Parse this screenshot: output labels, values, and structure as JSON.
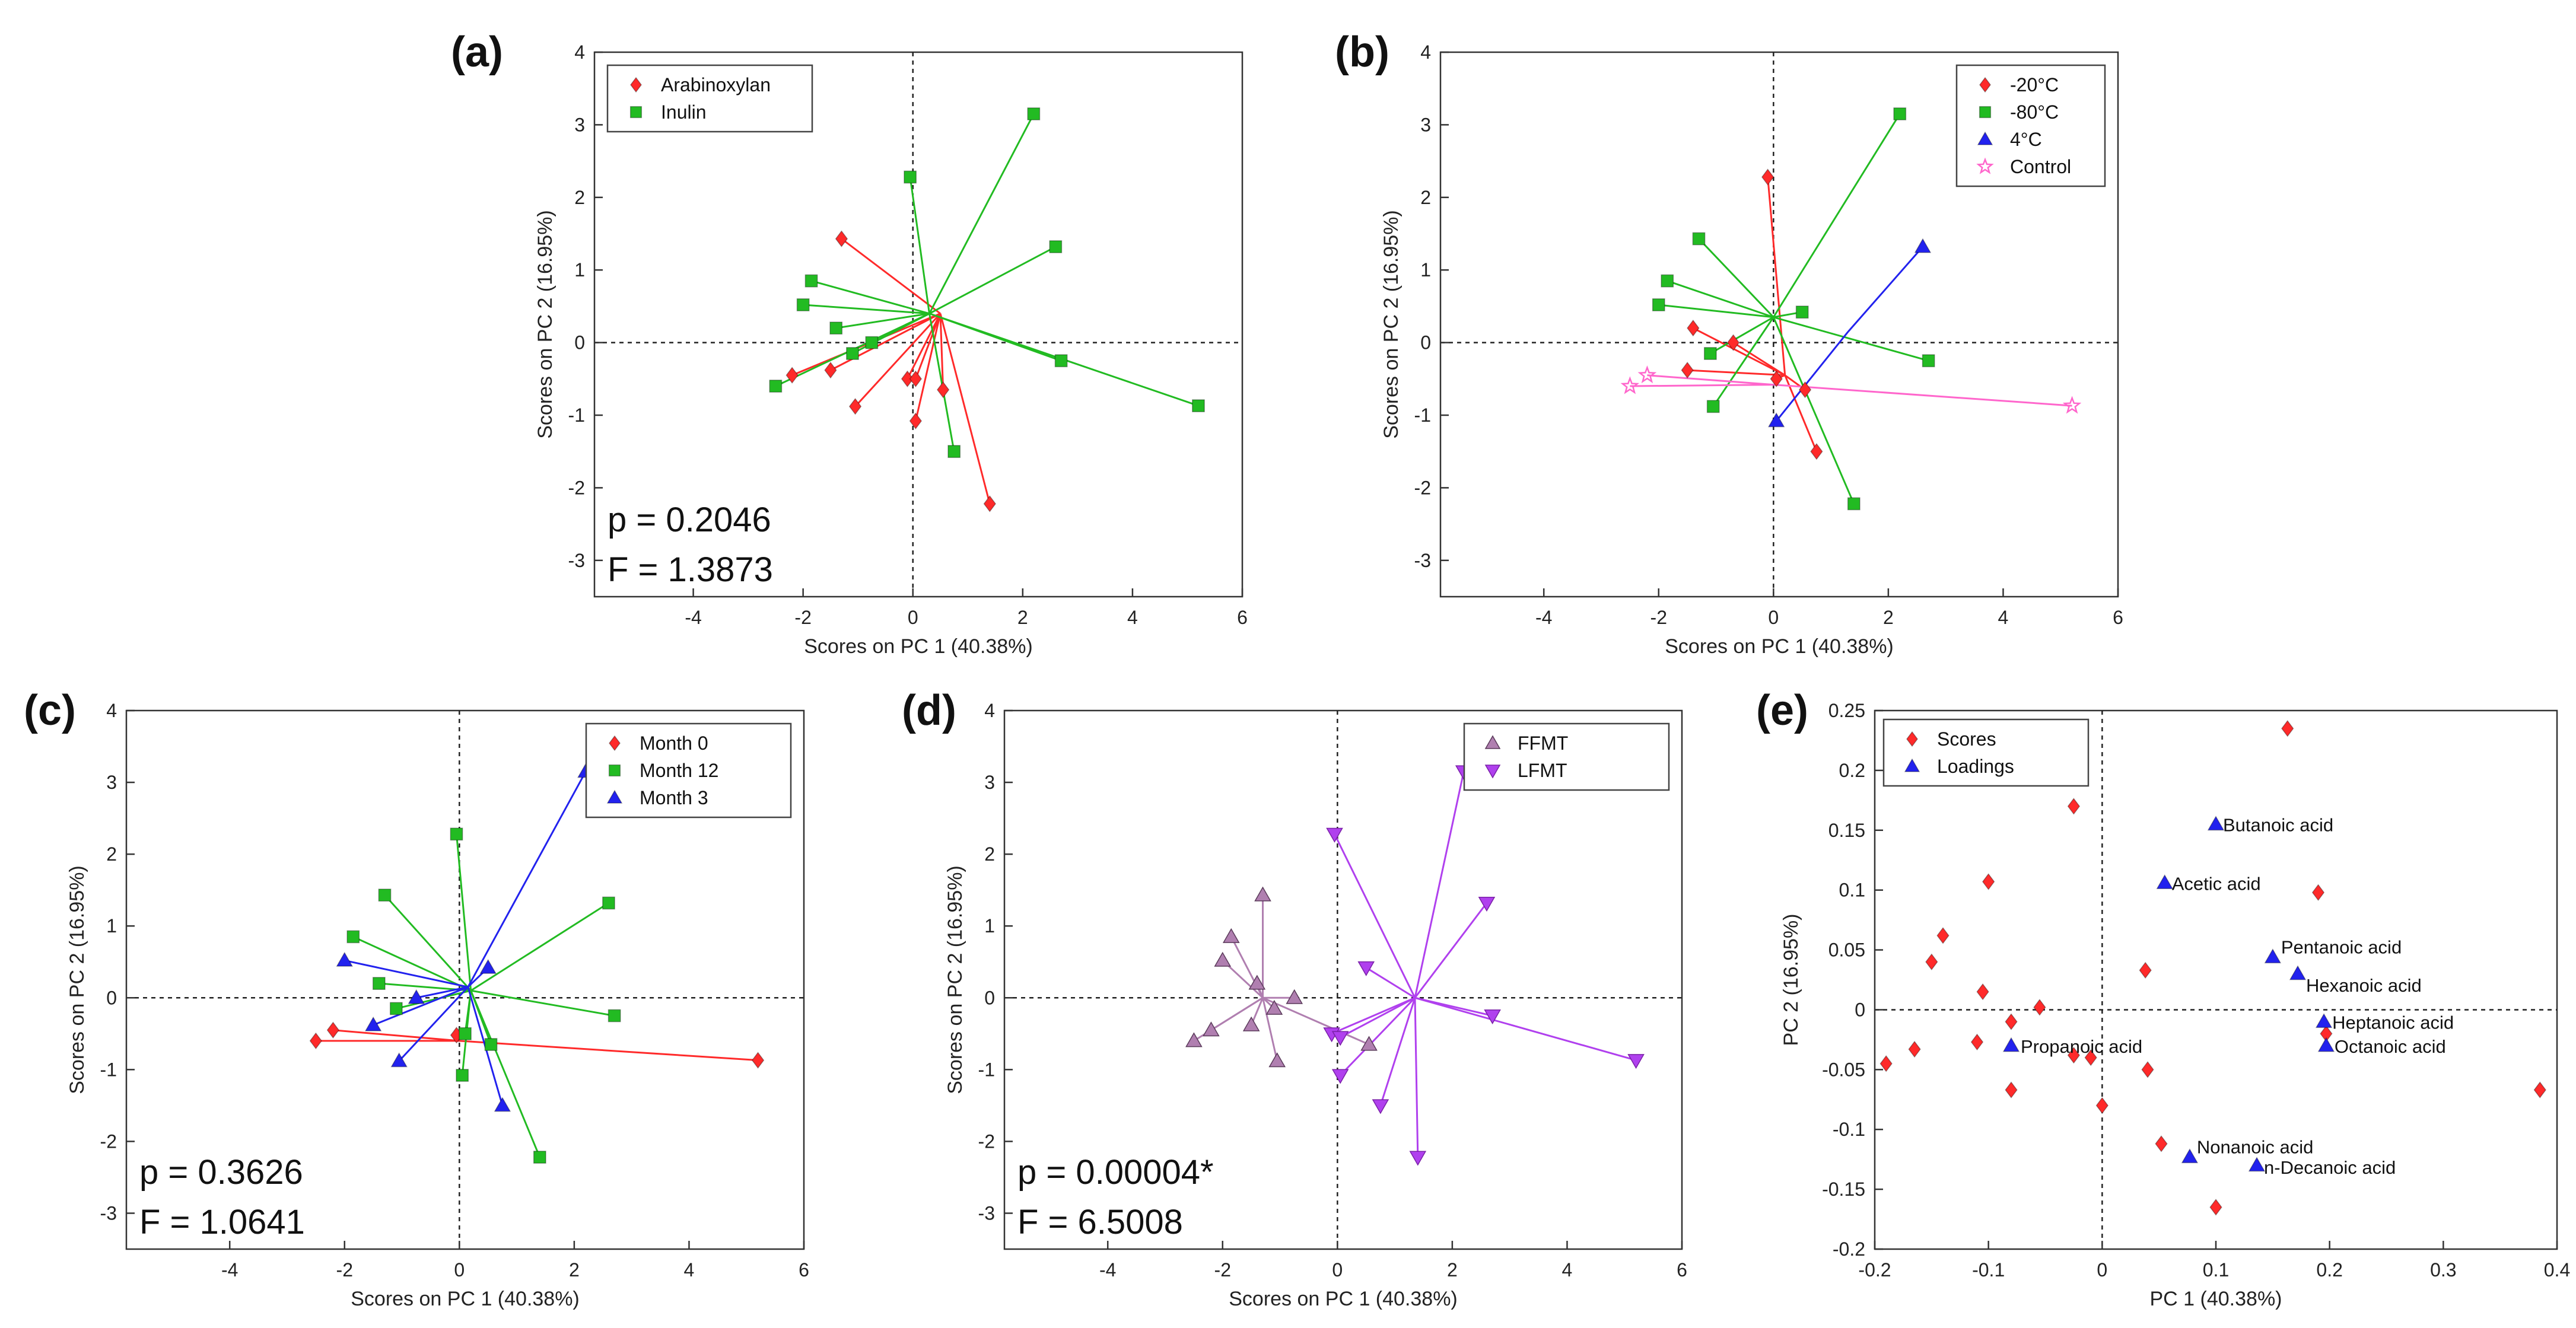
{
  "chart_data": [
    {
      "panel": "(a)",
      "type": "scatter",
      "xlabel": "Scores on PC 1 (40.38%)",
      "ylabel": "Scores on PC 2 (16.95%)",
      "xlim": [
        -5.8,
        6
      ],
      "ylim": [
        -3.5,
        4
      ],
      "xticks": [
        -4,
        -2,
        0,
        2,
        4,
        6
      ],
      "yticks": [
        -3,
        -2,
        -1,
        0,
        1,
        2,
        3,
        4
      ],
      "stats": [
        "p = 0.2046",
        "F = 1.3873"
      ],
      "legend_position": "top-left",
      "series": [
        {
          "name": "Arabinoxylan",
          "marker": "diamond",
          "color": "#ff2a2a",
          "centroid": [
            0.5,
            0.4
          ],
          "points": [
            [
              -1.3,
              1.43
            ],
            [
              -2.2,
              -0.45
            ],
            [
              -1.5,
              -0.38
            ],
            [
              -1.05,
              -0.88
            ],
            [
              -0.1,
              -0.5
            ],
            [
              0.05,
              -0.5
            ],
            [
              0.05,
              -1.08
            ],
            [
              0.55,
              -0.65
            ],
            [
              1.4,
              -2.22
            ]
          ]
        },
        {
          "name": "Inulin",
          "marker": "square",
          "color": "#22bb22",
          "centroid": [
            0.3,
            0.4
          ],
          "points": [
            [
              2.2,
              3.15
            ],
            [
              -0.05,
              2.28
            ],
            [
              2.6,
              1.32
            ],
            [
              -1.85,
              0.85
            ],
            [
              -2.0,
              0.52
            ],
            [
              -1.4,
              0.2
            ],
            [
              -1.1,
              -0.15
            ],
            [
              -0.75,
              0.0
            ],
            [
              -2.5,
              -0.6
            ],
            [
              0.75,
              -1.5
            ],
            [
              2.7,
              -0.25
            ],
            [
              5.2,
              -0.87
            ]
          ]
        }
      ]
    },
    {
      "panel": "(b)",
      "type": "scatter",
      "xlabel": "Scores on PC 1 (40.38%)",
      "ylabel": "Scores on PC 2 (16.95%)",
      "xlim": [
        -5.8,
        6
      ],
      "ylim": [
        -3.5,
        4
      ],
      "xticks": [
        -4,
        -2,
        0,
        2,
        4,
        6
      ],
      "yticks": [
        -3,
        -2,
        -1,
        0,
        1,
        2,
        3,
        4
      ],
      "legend_position": "top-right",
      "series": [
        {
          "name": "-20°C",
          "marker": "diamond",
          "color": "#ff2a2a",
          "centroid": [
            0.2,
            -0.45
          ],
          "points": [
            [
              -0.1,
              2.28
            ],
            [
              -1.4,
              0.2
            ],
            [
              -0.7,
              0.0
            ],
            [
              -1.5,
              -0.38
            ],
            [
              0.05,
              -0.5
            ],
            [
              0.55,
              -0.65
            ],
            [
              0.75,
              -1.5
            ]
          ]
        },
        {
          "name": "-80°C",
          "marker": "square",
          "color": "#22bb22",
          "centroid": [
            0.0,
            0.35
          ],
          "points": [
            [
              2.2,
              3.15
            ],
            [
              -1.3,
              1.43
            ],
            [
              -1.85,
              0.85
            ],
            [
              -2.0,
              0.52
            ],
            [
              -1.1,
              -0.15
            ],
            [
              0.5,
              0.42
            ],
            [
              -1.05,
              -0.88
            ],
            [
              2.7,
              -0.25
            ],
            [
              1.4,
              -2.22
            ]
          ]
        },
        {
          "name": "4°C",
          "marker": "triangle-up",
          "color": "#2222ee",
          "centroid": [
            1.3,
            0.15
          ],
          "points": [
            [
              2.6,
              1.32
            ],
            [
              0.05,
              -1.08
            ]
          ]
        },
        {
          "name": "Control",
          "marker": "star",
          "color": "#ff66cc",
          "centroid": [
            0.0,
            -0.58
          ],
          "points": [
            [
              -2.2,
              -0.45
            ],
            [
              -2.5,
              -0.6
            ],
            [
              5.2,
              -0.87
            ]
          ]
        }
      ]
    },
    {
      "panel": "(c)",
      "type": "scatter",
      "xlabel": "Scores on PC 1 (40.38%)",
      "ylabel": "Scores on PC 2 (16.95%)",
      "xlim": [
        -5.8,
        6
      ],
      "ylim": [
        -3.5,
        4
      ],
      "xticks": [
        -4,
        -2,
        0,
        2,
        4,
        6
      ],
      "yticks": [
        -3,
        -2,
        -1,
        0,
        1,
        2,
        3,
        4
      ],
      "stats": [
        "p = 0.3626",
        "F = 1.0641"
      ],
      "legend_position": "top-right",
      "series": [
        {
          "name": "Month 0",
          "marker": "diamond",
          "color": "#ff2a2a",
          "centroid": [
            0.0,
            -0.6
          ],
          "points": [
            [
              -2.2,
              -0.45
            ],
            [
              -2.5,
              -0.6
            ],
            [
              -0.05,
              -0.52
            ],
            [
              5.2,
              -0.87
            ]
          ]
        },
        {
          "name": "Month 12",
          "marker": "square",
          "color": "#22bb22",
          "centroid": [
            0.2,
            0.1
          ],
          "points": [
            [
              -0.05,
              2.28
            ],
            [
              -1.3,
              1.43
            ],
            [
              -1.85,
              0.85
            ],
            [
              2.6,
              1.32
            ],
            [
              -1.4,
              0.2
            ],
            [
              -1.1,
              -0.15
            ],
            [
              0.1,
              -0.5
            ],
            [
              0.05,
              -1.08
            ],
            [
              0.55,
              -0.65
            ],
            [
              2.7,
              -0.25
            ],
            [
              1.4,
              -2.22
            ]
          ]
        },
        {
          "name": "Month 3",
          "marker": "triangle-up",
          "color": "#2222ee",
          "centroid": [
            0.15,
            0.15
          ],
          "points": [
            [
              2.2,
              3.15
            ],
            [
              -2.0,
              0.52
            ],
            [
              -1.5,
              -0.38
            ],
            [
              -0.75,
              0.0
            ],
            [
              0.5,
              0.42
            ],
            [
              -1.05,
              -0.88
            ],
            [
              0.75,
              -1.5
            ]
          ]
        }
      ]
    },
    {
      "panel": "(d)",
      "type": "scatter",
      "xlabel": "Scores on PC 1 (40.38%)",
      "ylabel": "Scores on PC 2 (16.95%)",
      "xlim": [
        -5.8,
        6
      ],
      "ylim": [
        -3.5,
        4
      ],
      "xticks": [
        -4,
        -2,
        0,
        2,
        4,
        6
      ],
      "yticks": [
        -3,
        -2,
        -1,
        0,
        1,
        2,
        3,
        4
      ],
      "stats": [
        "p = 0.00004*",
        "F = 6.5008"
      ],
      "legend_position": "top-right",
      "series": [
        {
          "name": "FFMT",
          "marker": "triangle-up",
          "color": "#b07fb0",
          "centroid": [
            -1.3,
            0.0
          ],
          "points": [
            [
              -1.3,
              1.43
            ],
            [
              -1.85,
              0.85
            ],
            [
              -2.0,
              0.52
            ],
            [
              -1.4,
              0.2
            ],
            [
              -1.1,
              -0.15
            ],
            [
              -0.75,
              0.0
            ],
            [
              -1.5,
              -0.38
            ],
            [
              -2.2,
              -0.45
            ],
            [
              -2.5,
              -0.6
            ],
            [
              -1.05,
              -0.88
            ],
            [
              0.55,
              -0.65
            ]
          ]
        },
        {
          "name": "LFMT",
          "marker": "triangle-down",
          "color": "#b040ee",
          "centroid": [
            1.35,
            0.0
          ],
          "points": [
            [
              2.2,
              3.15
            ],
            [
              -0.05,
              2.28
            ],
            [
              2.6,
              1.32
            ],
            [
              0.5,
              0.42
            ],
            [
              -0.1,
              -0.5
            ],
            [
              0.05,
              -0.55
            ],
            [
              0.05,
              -1.08
            ],
            [
              0.75,
              -1.5
            ],
            [
              1.4,
              -2.22
            ],
            [
              2.7,
              -0.25
            ],
            [
              5.2,
              -0.87
            ]
          ]
        }
      ]
    },
    {
      "panel": "(e)",
      "type": "scatter",
      "xlabel": "PC 1 (40.38%)",
      "ylabel": "PC 2 (16.95%)",
      "xlim": [
        -0.2,
        0.4
      ],
      "ylim": [
        -0.2,
        0.25
      ],
      "xticks": [
        -0.2,
        -0.1,
        0,
        0.1,
        0.2,
        0.3,
        0.4
      ],
      "xtick_labels": [
        "-0.2",
        "-0.1",
        "0",
        "0.1",
        "0.2",
        "0.3",
        "0.4"
      ],
      "yticks": [
        -0.2,
        -0.15,
        -0.1,
        -0.05,
        0,
        0.05,
        0.1,
        0.15,
        0.2,
        0.25
      ],
      "ytick_labels": [
        "-0.2",
        "-0.15",
        "-0.1",
        "-0.05",
        "0",
        "0.05",
        "0.1",
        "0.15",
        "0.2",
        "0.25"
      ],
      "legend_position": "top-left",
      "series": [
        {
          "name": "Scores",
          "marker": "diamond",
          "color": "#ff2a2a",
          "points": [
            [
              0.163,
              0.235
            ],
            [
              -0.025,
              0.17
            ],
            [
              -0.1,
              0.107
            ],
            [
              0.19,
              0.098
            ],
            [
              -0.14,
              0.062
            ],
            [
              -0.15,
              0.04
            ],
            [
              0.038,
              0.033
            ],
            [
              -0.105,
              0.015
            ],
            [
              -0.055,
              0.002
            ],
            [
              -0.08,
              -0.01
            ],
            [
              -0.165,
              -0.033
            ],
            [
              -0.11,
              -0.027
            ],
            [
              -0.025,
              -0.038
            ],
            [
              -0.01,
              -0.04
            ],
            [
              -0.19,
              -0.045
            ],
            [
              0.04,
              -0.05
            ],
            [
              -0.08,
              -0.067
            ],
            [
              0.0,
              -0.08
            ],
            [
              0.385,
              -0.067
            ],
            [
              0.197,
              -0.02
            ],
            [
              0.052,
              -0.112
            ],
            [
              0.1,
              -0.165
            ]
          ]
        },
        {
          "name": "Loadings",
          "marker": "triangle-up",
          "color": "#2222ee",
          "points": [
            [
              0.1,
              0.155
            ],
            [
              0.055,
              0.106
            ],
            [
              0.15,
              0.044
            ],
            [
              0.172,
              0.03
            ],
            [
              0.195,
              -0.01
            ],
            [
              0.197,
              -0.03
            ],
            [
              -0.08,
              -0.03
            ],
            [
              0.077,
              -0.123
            ],
            [
              0.136,
              -0.13
            ]
          ]
        }
      ],
      "loading_labels": [
        "Butanoic acid",
        "Acetic acid",
        "Pentanoic acid",
        "Hexanoic acid",
        "Heptanoic acid",
        "Octanoic acid",
        "Propanoic acid",
        "Nonanoic acid",
        "n-Decanoic acid"
      ]
    }
  ]
}
